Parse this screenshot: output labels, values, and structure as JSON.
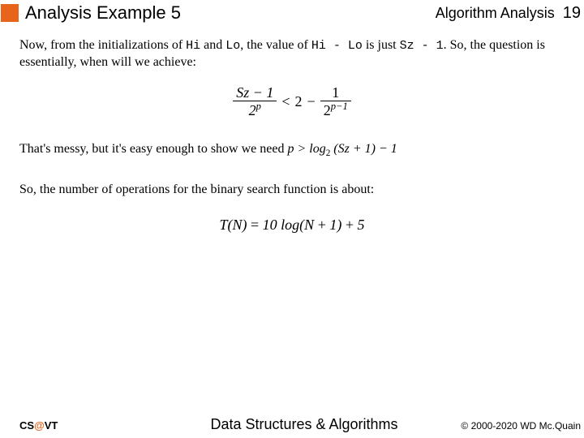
{
  "colors": {
    "accent": "#e8641b",
    "text": "#000000",
    "background": "#ffffff"
  },
  "header": {
    "title": "Analysis Example 5",
    "section": "Algorithm Analysis",
    "page_number": "19"
  },
  "body": {
    "p1_a": "Now, from the initializations of ",
    "p1_hi": "Hi",
    "p1_b": " and ",
    "p1_lo": "Lo",
    "p1_c": ", the value of ",
    "p1_expr1": "Hi - Lo",
    "p1_d": " is just ",
    "p1_expr2": "Sz - 1",
    "p1_e": ". So, the question is essentially, when will we achieve:",
    "eq1": {
      "frac1_num": "Sz − 1",
      "frac1_den_base": "2",
      "frac1_den_exp": "p",
      "op1": "<",
      "mid": "2",
      "op2": "−",
      "frac2_num": "1",
      "frac2_den_base": "2",
      "frac2_den_exp": "p−1"
    },
    "p2_a": "That's messy, but it's easy enough to show we need  ",
    "inline_eq": "p > log₂ (Sz + 1) − 1",
    "p3": "So, the number of operations for the binary search function is about:",
    "eq2": "T(N) = 10 log(N + 1) + 5"
  },
  "footer": {
    "left_a": "CS",
    "left_at": "@",
    "left_b": "VT",
    "center": "Data Structures & Algorithms",
    "right": "© 2000-2020 WD Mc.Quain"
  }
}
